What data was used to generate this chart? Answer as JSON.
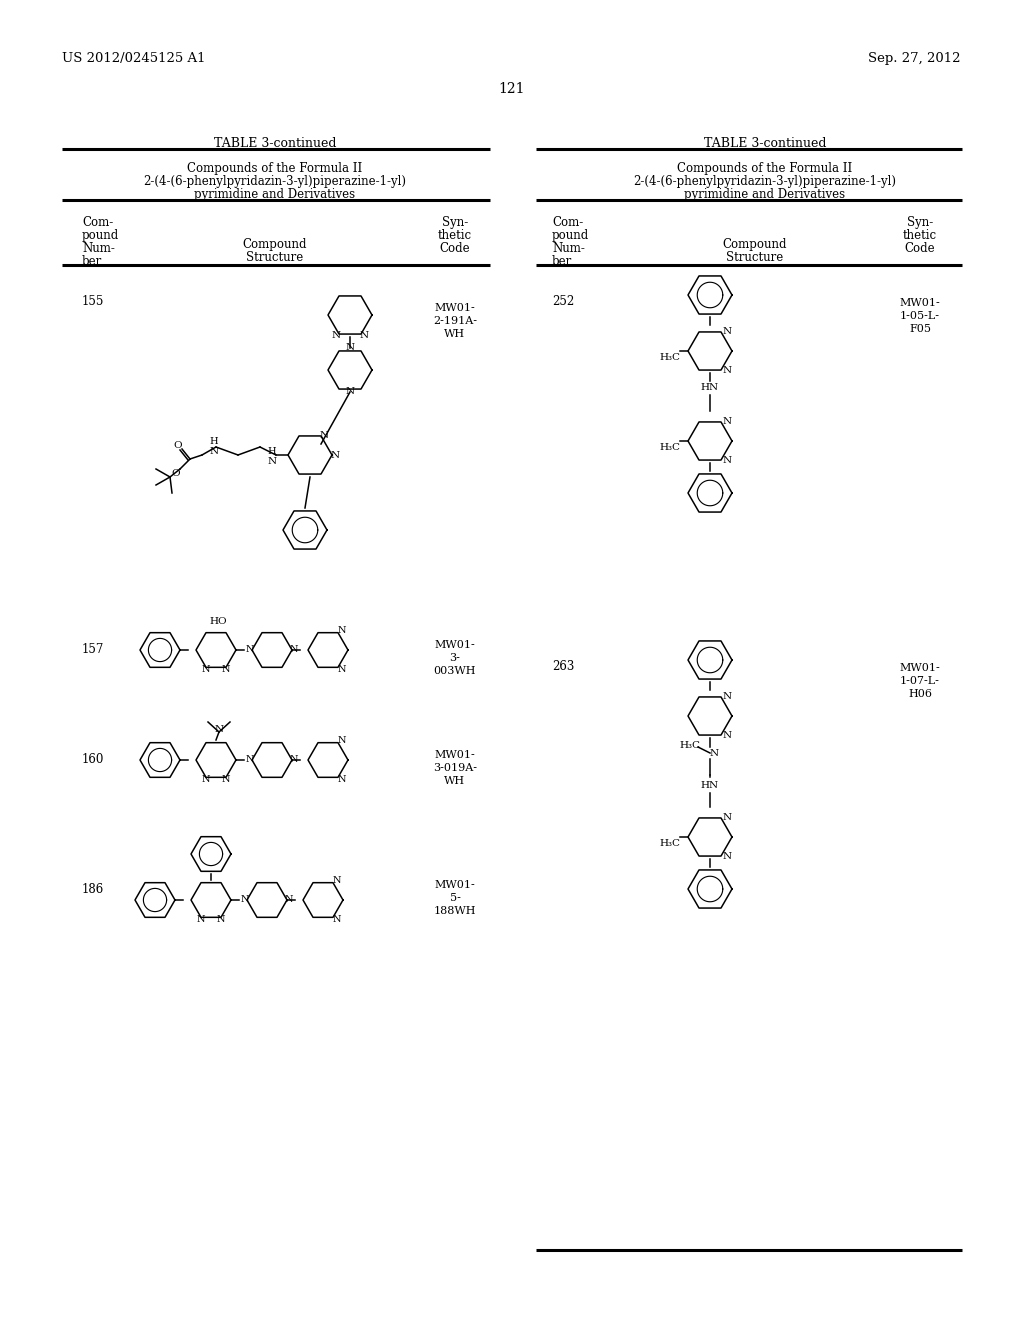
{
  "header_left": "US 2012/0245125 A1",
  "header_right": "Sep. 27, 2012",
  "page_number": "121",
  "table_title": "TABLE 3-continued",
  "table_subtitle1": "Compounds of the Formula II",
  "table_subtitle2": "2-(4-(6-phenylpyridazin-3-yl)piperazine-1-yl)",
  "table_subtitle3": "pyrimidine and Derivatives",
  "bg_color": "#ffffff"
}
